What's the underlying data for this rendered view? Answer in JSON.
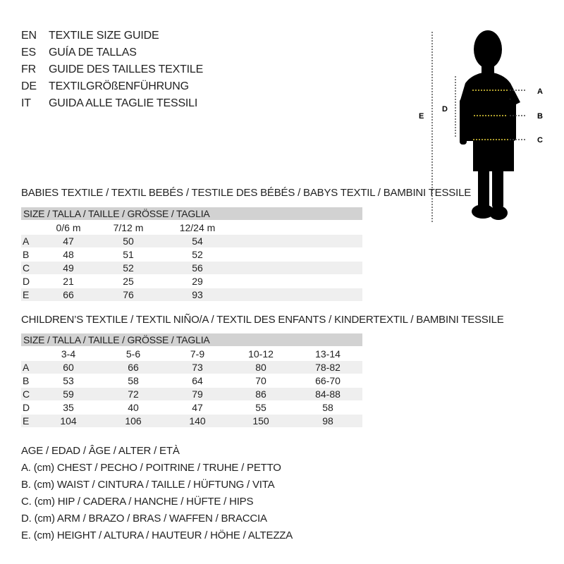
{
  "title_lines": [
    {
      "code": "EN",
      "text": "TEXTILE SIZE GUIDE"
    },
    {
      "code": "ES",
      "text": "GUÍA DE TALLAS"
    },
    {
      "code": "FR",
      "text": "GUIDE DES TAILLES TEXTILE"
    },
    {
      "code": "DE",
      "text": "TEXTILGRÖßENFÜHRUNG"
    },
    {
      "code": "IT",
      "text": "GUIDA ALLE TAGLIE TESSILI"
    }
  ],
  "figure": {
    "labels": {
      "a": "A",
      "b": "B",
      "c": "C",
      "d": "D",
      "e": "E"
    },
    "accent": "#e8d23a"
  },
  "babies": {
    "title": "BABIES TEXTILE / TEXTIL BEBÉS / TESTILE DES BÉBÉS / BABYS TEXTIL / BAMBINI TESSILE",
    "header": "SIZE / TALLA / TAILLE / GRÖSSE / TAGLIA",
    "columns": [
      "0/6 m",
      "7/12 m",
      "12/24 m"
    ],
    "rows": [
      {
        "label": "A",
        "values": [
          "47",
          "50",
          "54"
        ]
      },
      {
        "label": "B",
        "values": [
          "48",
          "51",
          "52"
        ]
      },
      {
        "label": "C",
        "values": [
          "49",
          "52",
          "56"
        ]
      },
      {
        "label": "D",
        "values": [
          "21",
          "25",
          "29"
        ]
      },
      {
        "label": "E",
        "values": [
          "66",
          "76",
          "93"
        ]
      }
    ]
  },
  "children": {
    "title": "CHILDREN’S TEXTILE / TEXTIL NIÑO/A / TEXTIL DES ENFANTS / KINDERTEXTIL / BAMBINI TESSILE",
    "header": "SIZE / TALLA / TAILLE / GRÖSSE / TAGLIA",
    "columns": [
      "3-4",
      "5-6",
      "7-9",
      "10-12",
      "13-14"
    ],
    "rows": [
      {
        "label": "A",
        "values": [
          "60",
          "66",
          "73",
          "80",
          "78-82"
        ]
      },
      {
        "label": "B",
        "values": [
          "53",
          "58",
          "64",
          "70",
          "66-70"
        ]
      },
      {
        "label": "C",
        "values": [
          "59",
          "72",
          "79",
          "86",
          "84-88"
        ]
      },
      {
        "label": "D",
        "values": [
          "35",
          "40",
          "47",
          "55",
          "58"
        ]
      },
      {
        "label": "E",
        "values": [
          "104",
          "106",
          "140",
          "150",
          "98"
        ]
      }
    ]
  },
  "legend": [
    "AGE / EDAD / ÂGE / ALTER / ETÀ",
    "A. (cm) CHEST / PECHO / POITRINE / TRUHE / PETTO",
    "B. (cm) WAIST / CINTURA / TAILLE / HÜFTUNG / VITA",
    "C. (cm) HIP / CADERA / HANCHE / HÜFTE / HIPS",
    "D. (cm) ARM / BRAZO / BRAS / WAFFEN / BRACCIA",
    "E. (cm) HEIGHT / ALTURA / HAUTEUR / HÖHE / ALTEZZA"
  ]
}
